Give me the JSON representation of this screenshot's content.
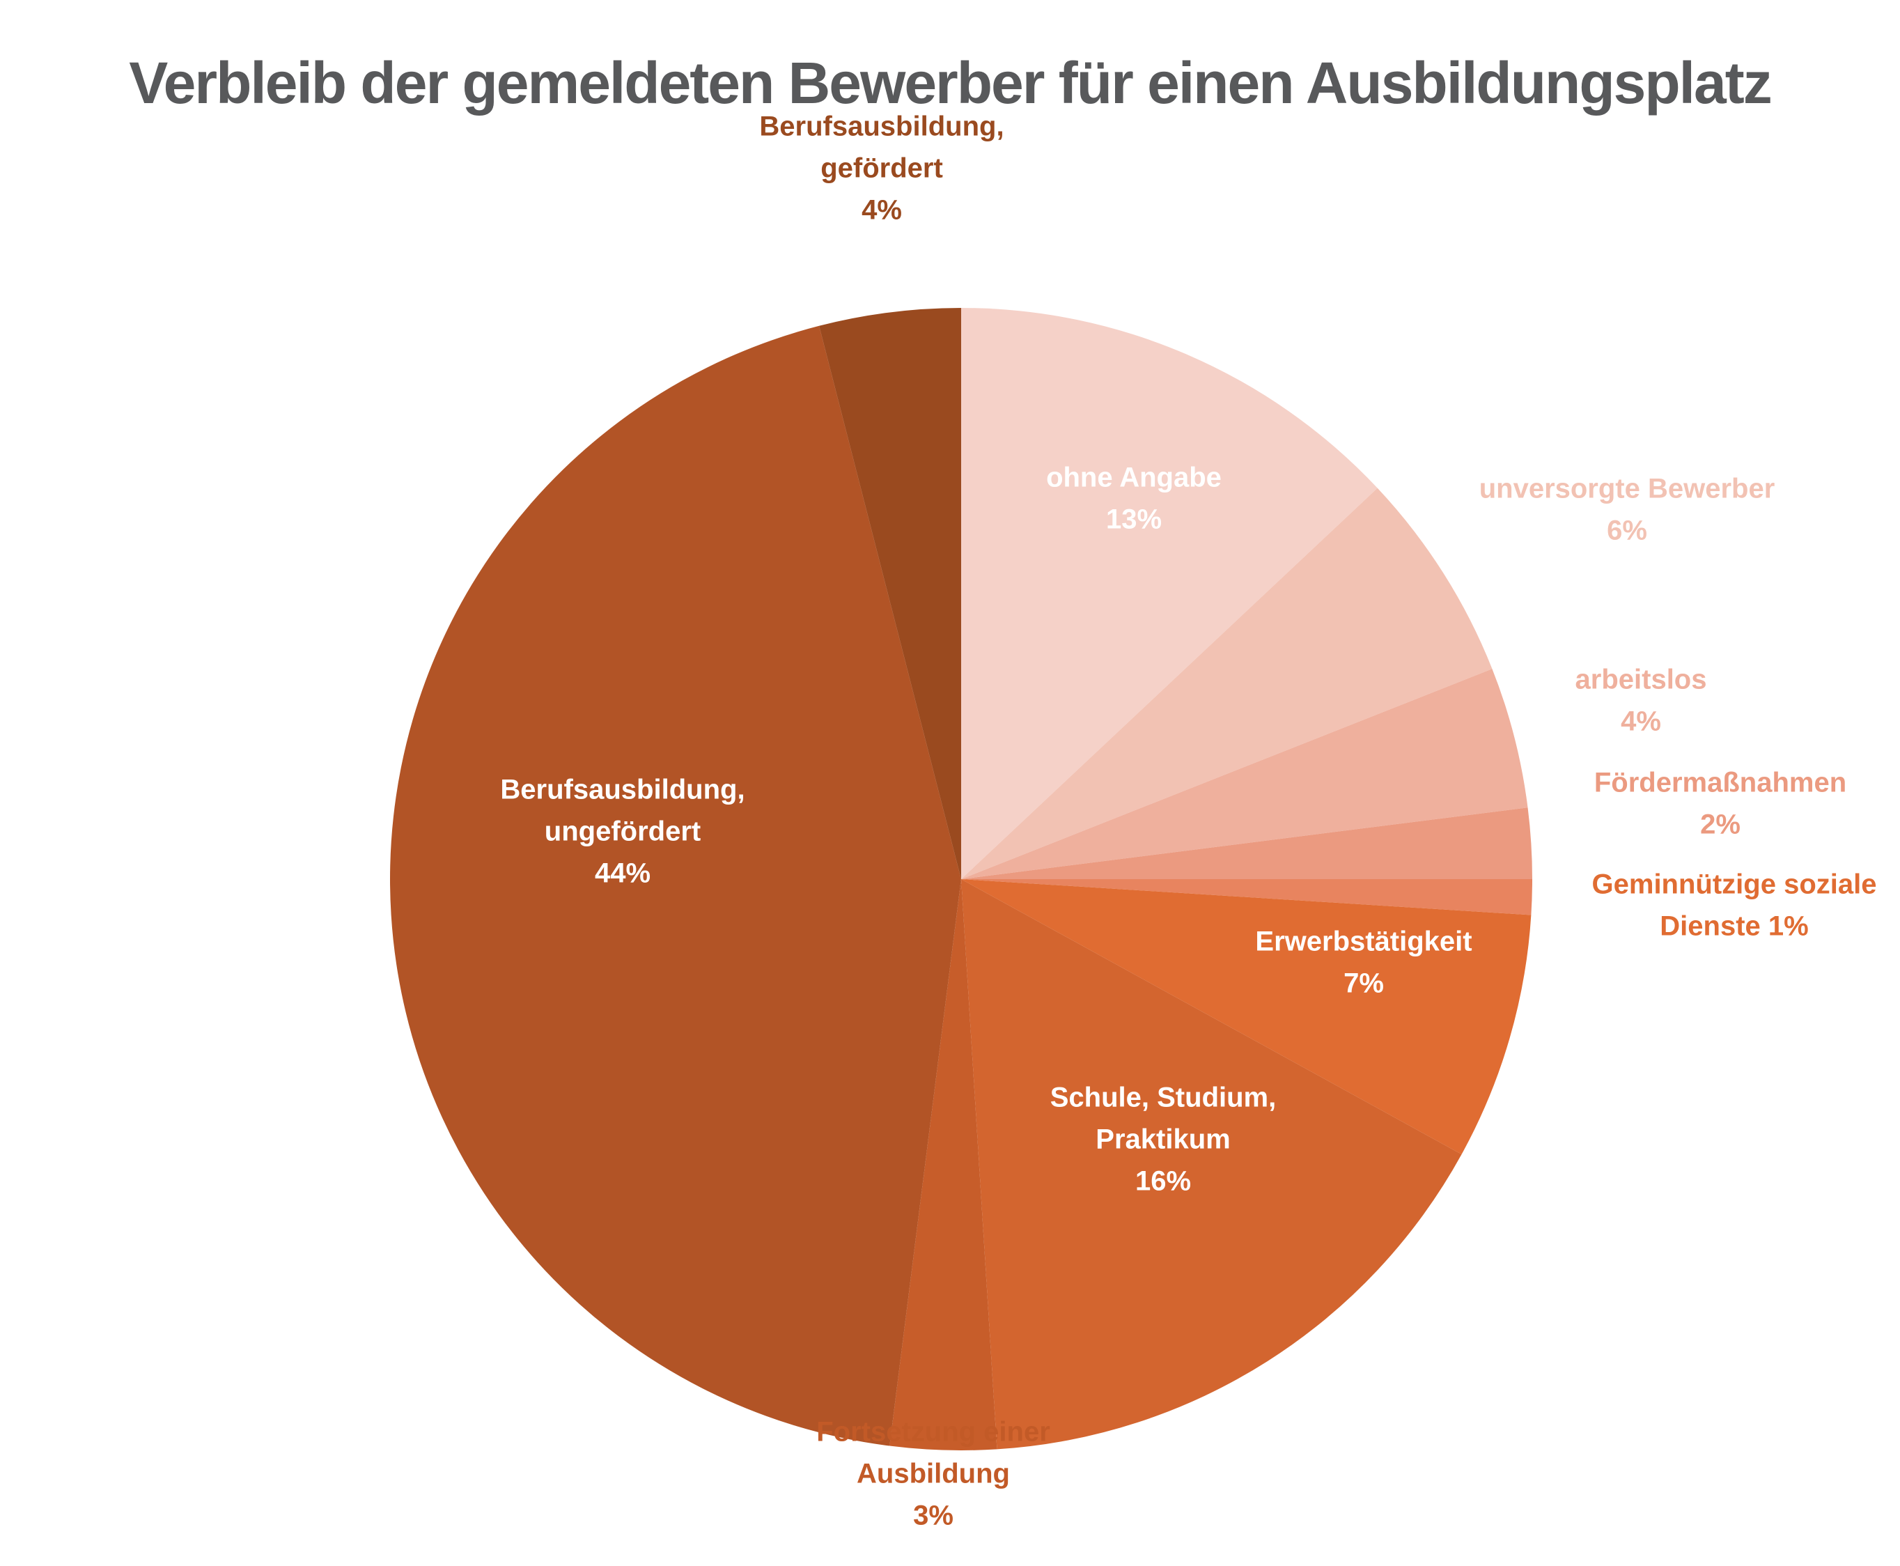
{
  "chart_data": {
    "type": "pie",
    "title": "Verbleib der gemeldeten Bewerber für einen Ausbildungsplatz",
    "title_color": "#58595b",
    "start_angle": "12 o'clock",
    "direction": "clockwise",
    "slices": [
      {
        "label_lines": [
          "ohne Angabe"
        ],
        "percent_label": "13%",
        "value": 13,
        "color": "#f5d1c8",
        "label_color": "#ffffff",
        "label_placement": "inside"
      },
      {
        "label_lines": [
          "unversorgte Bewerber"
        ],
        "percent_label": "6%",
        "value": 6,
        "color": "#f2c2b3",
        "label_color": "#f2c2b3",
        "label_placement": "outside-right"
      },
      {
        "label_lines": [
          "arbeitslos"
        ],
        "percent_label": "4%",
        "value": 4,
        "color": "#efb09d",
        "label_color": "#efb09d",
        "label_placement": "outside-right"
      },
      {
        "label_lines": [
          "Fördermaßnahmen"
        ],
        "percent_label": "2%",
        "value": 2,
        "color": "#eb9a80",
        "label_color": "#eb9a80",
        "label_placement": "outside-right"
      },
      {
        "label_lines": [
          "Geminnützige soziale",
          "Dienste 1%"
        ],
        "percent_label": "",
        "value": 1,
        "color": "#e8845f",
        "label_color": "#e06c32",
        "label_placement": "outside-right"
      },
      {
        "label_lines": [
          "Erwerbstätigkeit"
        ],
        "percent_label": "7%",
        "value": 7,
        "color": "#e06c32",
        "label_color": "#ffffff",
        "label_placement": "inside"
      },
      {
        "label_lines": [
          "Schule, Studium,",
          "Praktikum"
        ],
        "percent_label": "16%",
        "value": 16,
        "color": "#d3652f",
        "label_color": "#ffffff",
        "label_placement": "inside"
      },
      {
        "label_lines": [
          "Fortsetzung einer",
          "Ausbildung"
        ],
        "percent_label": "3%",
        "value": 3,
        "color": "#c75d2a",
        "label_color": "#c25a27",
        "label_placement": "outside-bottom"
      },
      {
        "label_lines": [
          "Berufsausbildung,",
          "ungefördert"
        ],
        "percent_label": "44%",
        "value": 44,
        "color": "#b25426",
        "label_color": "#ffffff",
        "label_placement": "inside"
      },
      {
        "label_lines": [
          "Berufsausbildung,",
          "gefördert"
        ],
        "percent_label": "4%",
        "value": 4,
        "color": "#9a4a1f",
        "label_color": "#9a4a1f",
        "label_placement": "outside-top"
      }
    ]
  }
}
